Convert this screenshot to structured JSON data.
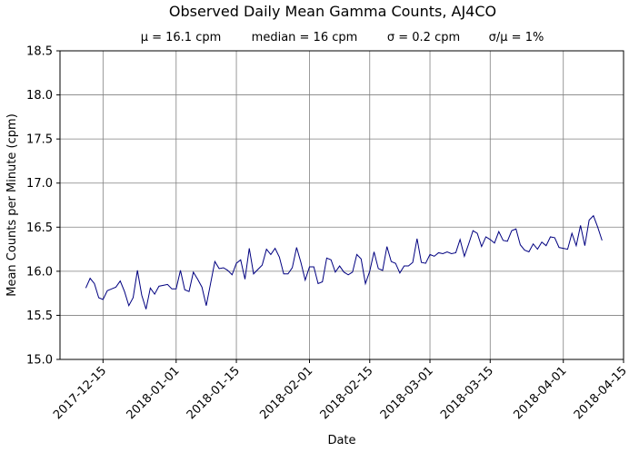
{
  "chart_data": {
    "type": "line",
    "title": "Observed Daily Mean Gamma Counts, AJ4CO",
    "subtitle_stats": [
      "μ = 16.1 cpm",
      "median = 16 cpm",
      "σ = 0.2 cpm",
      "σ/μ = 1%"
    ],
    "xlabel": "Date",
    "ylabel": "Mean Counts per Minute (cpm)",
    "xlim": [
      "2017-12-05",
      "2018-04-15"
    ],
    "ylim": [
      15.0,
      18.5
    ],
    "x_ticks": [
      "2017-12-15",
      "2018-01-01",
      "2018-01-15",
      "2018-02-01",
      "2018-02-15",
      "2018-03-01",
      "2018-03-15",
      "2018-04-01",
      "2018-04-15"
    ],
    "y_ticks": [
      "15.0",
      "15.5",
      "16.0",
      "16.5",
      "17.0",
      "17.5",
      "18.0",
      "18.5"
    ],
    "grid": true,
    "line_color": "#000080",
    "series": [
      {
        "start_date": "2017-12-11",
        "values": [
          15.81,
          15.92,
          15.86,
          15.7,
          15.68,
          15.78,
          15.8,
          15.82,
          15.89,
          15.77,
          15.61,
          15.7,
          16.01,
          15.73,
          15.57,
          15.81,
          15.74,
          15.83,
          15.84,
          15.85,
          15.8,
          15.8,
          16.01,
          15.79,
          15.77,
          15.99,
          15.91,
          15.82,
          15.61,
          15.86,
          16.11,
          16.03,
          16.04,
          16.01,
          15.96,
          16.09,
          16.13,
          15.91,
          16.26,
          15.97,
          16.02,
          16.07,
          16.25,
          16.19,
          16.26,
          16.16,
          15.97,
          15.97,
          16.04,
          16.27,
          16.1,
          15.9,
          16.05,
          16.05,
          15.86,
          15.88,
          16.15,
          16.13,
          15.99,
          16.06,
          15.99,
          15.96,
          15.99,
          16.19,
          16.14,
          15.86,
          16.0,
          16.22,
          16.03,
          16.01,
          16.28,
          16.11,
          16.09,
          15.98,
          16.06,
          16.06,
          16.1,
          16.37,
          16.1,
          16.09,
          16.19,
          16.17,
          16.21,
          16.2,
          16.22,
          16.2,
          16.21,
          16.36,
          16.17,
          16.31,
          16.46,
          16.43,
          16.28,
          16.39,
          16.36,
          16.32,
          16.45,
          16.35,
          16.34,
          16.46,
          16.48,
          16.3,
          16.24,
          16.22,
          16.31,
          16.25,
          16.33,
          16.29,
          16.39,
          16.38,
          16.27,
          16.26,
          16.25,
          16.43,
          16.29,
          16.52,
          16.29,
          16.58,
          16.63,
          16.5,
          16.35
        ]
      }
    ]
  }
}
